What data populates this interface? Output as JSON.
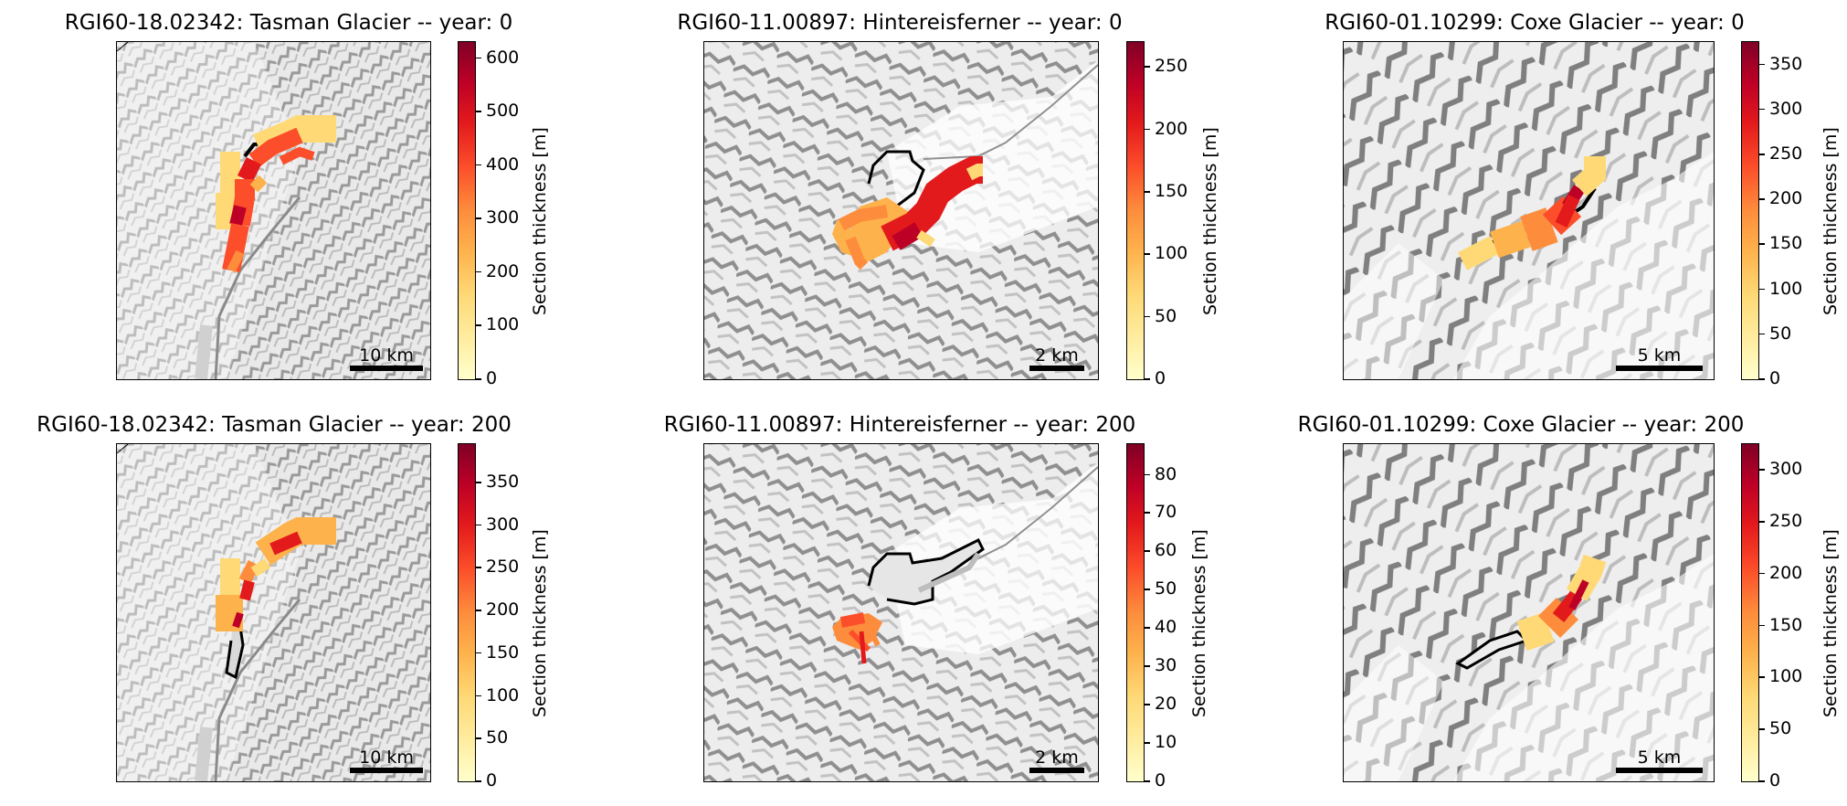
{
  "cbar_label": "Section thickness [m]",
  "panels": [
    {
      "title": "RGI60-18.02342: Tasman Glacier -- year: 0",
      "scale": "10 km",
      "ticks": [
        0,
        100,
        200,
        300,
        400,
        500,
        600
      ],
      "vmax": 630
    },
    {
      "title": "RGI60-11.00897: Hintereisferner -- year: 0",
      "scale": "2 km",
      "ticks": [
        0,
        50,
        100,
        150,
        200,
        250
      ],
      "vmax": 270
    },
    {
      "title": "RGI60-01.10299: Coxe Glacier -- year: 0",
      "scale": "5 km",
      "ticks": [
        0,
        50,
        100,
        150,
        200,
        250,
        300,
        350
      ],
      "vmax": 375
    },
    {
      "title": "RGI60-18.02342: Tasman Glacier -- year: 200",
      "scale": "10 km",
      "ticks": [
        0,
        50,
        100,
        150,
        200,
        250,
        300,
        350
      ],
      "vmax": 395
    },
    {
      "title": "RGI60-11.00897: Hintereisferner -- year: 200",
      "scale": "2 km",
      "ticks": [
        0,
        10,
        20,
        30,
        40,
        50,
        60,
        70,
        80
      ],
      "vmax": 88
    },
    {
      "title": "RGI60-01.10299: Coxe Glacier -- year: 200",
      "scale": "5 km",
      "ticks": [
        0,
        50,
        100,
        150,
        200,
        250,
        300
      ],
      "vmax": 325
    }
  ],
  "colors": {
    "cmap": [
      "#ffffcc",
      "#ffeda0",
      "#fed976",
      "#feb24c",
      "#fd8d3c",
      "#fc4e2a",
      "#e31a1c",
      "#bd0026",
      "#800026"
    ]
  }
}
